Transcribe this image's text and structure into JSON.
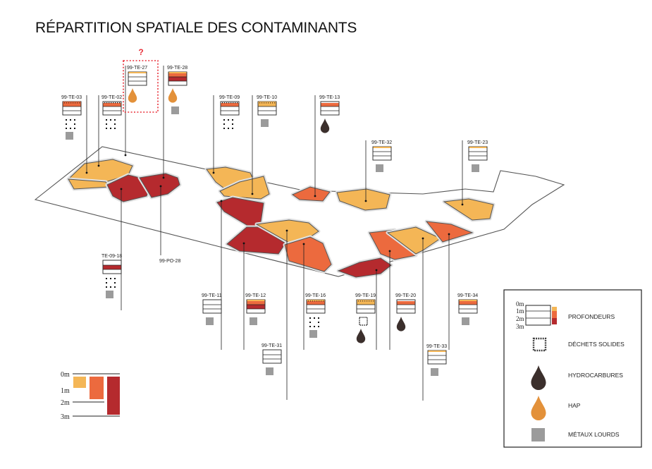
{
  "title": "RÉPARTITION SPATIALE DES CONTAMINANTS",
  "question_mark": "?",
  "colors": {
    "light": "#f4b656",
    "mid": "#ec6a3e",
    "deep": "#b52a2e",
    "hydrocarbon": "#3b2f2c",
    "hap": "#e3913a",
    "metal": "#9b9b9b",
    "outline": "#555555",
    "wall": "#e2e2e2",
    "highlight": "#e8303a"
  },
  "stations": [
    {
      "id": "99-TE-03",
      "d": [
        2,
        2,
        0
      ],
      "icons": [
        "debris",
        "metal"
      ]
    },
    {
      "id": "99-TE-02",
      "d": [
        0,
        2,
        0
      ],
      "icons": [
        "debris"
      ]
    },
    {
      "id": "99-TE-27",
      "d": [
        1,
        0,
        0
      ],
      "icons": [
        "hap"
      ]
    },
    {
      "id": "99-TE-28",
      "d": [
        1,
        2,
        3
      ],
      "icons": [
        "hap",
        "metal"
      ]
    },
    {
      "id": "99-TE-09",
      "d": [
        0,
        2,
        0
      ],
      "icons": [
        "debris"
      ]
    },
    {
      "id": "99-TE-10",
      "d": [
        1,
        1,
        0
      ],
      "icons": [
        "metal"
      ]
    },
    {
      "id": "99-TE-13",
      "d": [
        0,
        2,
        0
      ],
      "icons": [
        "hydro"
      ]
    },
    {
      "id": "99-TE-32",
      "d": [
        1,
        0,
        0
      ],
      "icons": [
        "metal"
      ]
    },
    {
      "id": "99-TE-23",
      "d": [
        1,
        0,
        0
      ],
      "icons": [
        "metal"
      ]
    },
    {
      "id": "TE-09-18",
      "d": [
        0,
        0,
        3
      ],
      "icons": [
        "debris",
        "metal"
      ]
    },
    {
      "id": "99-PO-28",
      "d": [],
      "icons": []
    },
    {
      "id": "99-TE-11",
      "d": [
        0,
        0,
        0
      ],
      "icons": [
        "metal"
      ]
    },
    {
      "id": "99-TE-12",
      "d": [
        1,
        2,
        3
      ],
      "icons": [
        "metal"
      ]
    },
    {
      "id": "99-TE-16",
      "d": [
        1,
        2,
        0
      ],
      "icons": [
        "debris",
        "metal"
      ]
    },
    {
      "id": "99-TE-19",
      "d": [
        1,
        1,
        0
      ],
      "icons": [
        "solid",
        "hydro"
      ]
    },
    {
      "id": "99-TE-20",
      "d": [
        0,
        2,
        0
      ],
      "icons": [
        "hydro"
      ]
    },
    {
      "id": "99-TE-34",
      "d": [
        1,
        2,
        0
      ],
      "icons": [
        "metal"
      ]
    },
    {
      "id": "99-TE-31",
      "d": [
        0,
        0,
        0
      ],
      "icons": [
        "metal"
      ]
    },
    {
      "id": "99-TE-33",
      "d": [
        1,
        0,
        0
      ],
      "icons": [
        "metal"
      ]
    }
  ],
  "scale": {
    "labels": [
      "0m",
      "1m",
      "2m",
      "3m"
    ]
  },
  "legend": {
    "depth_labels": [
      "0m",
      "1m",
      "2m",
      "3m"
    ],
    "items": [
      {
        "key": "profondeurs",
        "label": "PROFONDEURS"
      },
      {
        "key": "solid",
        "label": "DÉCHETS SOLIDES"
      },
      {
        "key": "hydro",
        "label": "HYDROCARBURES"
      },
      {
        "key": "hap",
        "label": "HAP"
      },
      {
        "key": "metal",
        "label": "MÉTAUX LOURDS"
      }
    ]
  }
}
